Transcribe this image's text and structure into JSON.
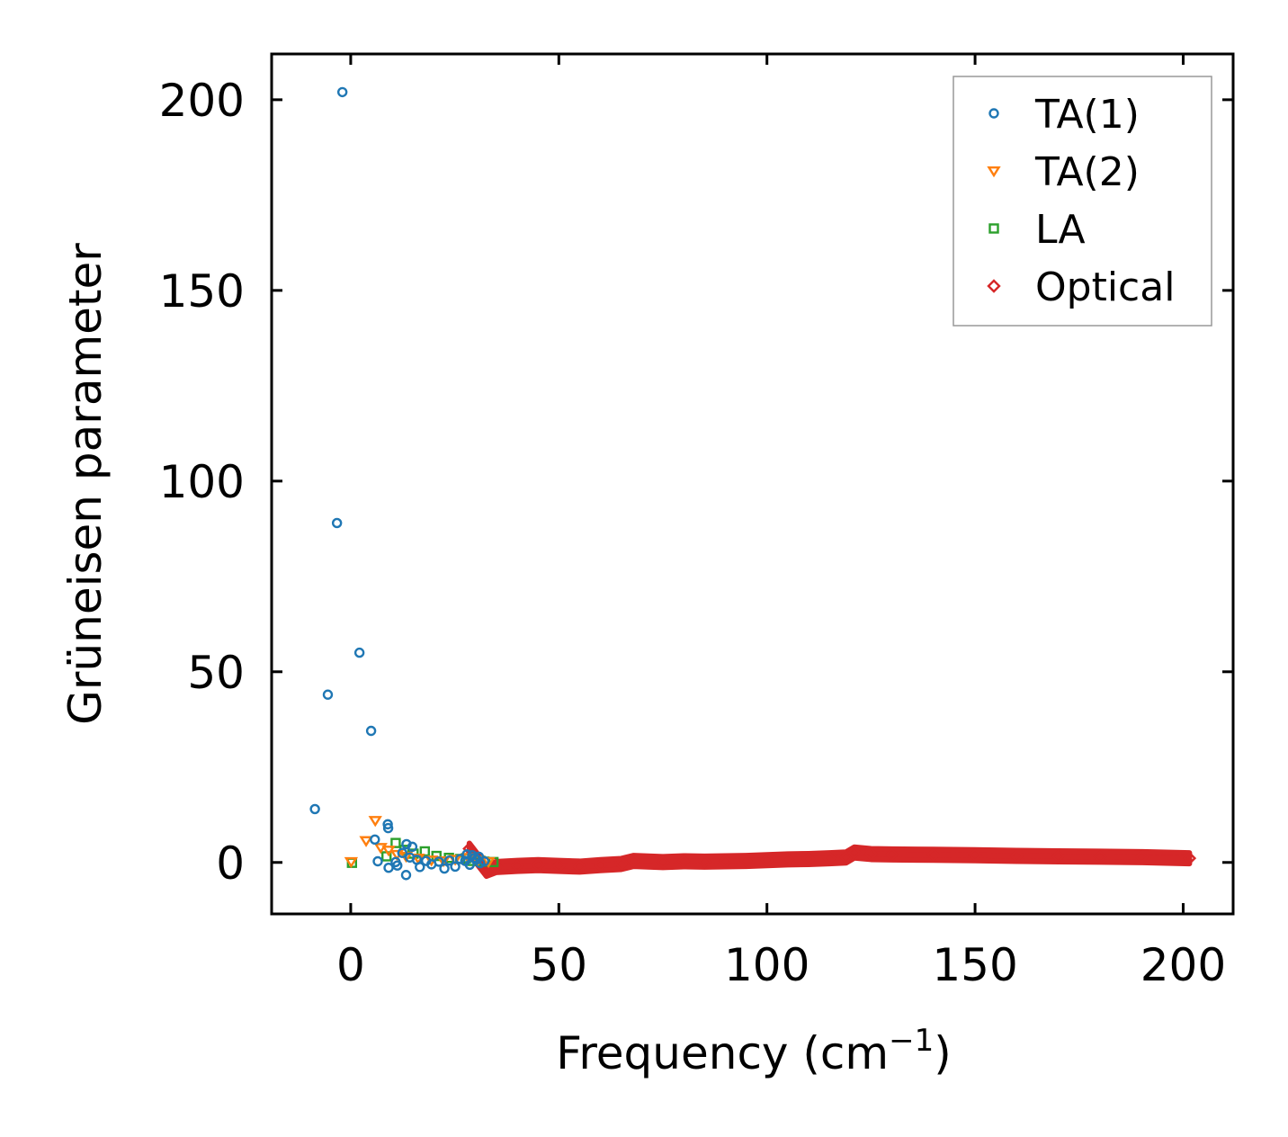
{
  "chart_data": {
    "type": "scatter",
    "title": "",
    "xlabel": "Frequency (cm",
    "xlabel_sup": "−1",
    "xlabel_end": ")",
    "ylabel": "Grüneisen parameter",
    "xlim": [
      -19,
      212
    ],
    "ylim": [
      -13.5,
      212
    ],
    "xticks": [
      0,
      50,
      100,
      150,
      200
    ],
    "yticks": [
      0,
      50,
      100,
      150,
      200
    ],
    "xtick_labels": [
      "0",
      "50",
      "100",
      "150",
      "200"
    ],
    "ytick_labels": [
      "0",
      "50",
      "100",
      "150",
      "200"
    ],
    "grid": false,
    "legend_position": "top-right",
    "series": [
      {
        "name": "TA(1)",
        "marker": "circle",
        "color": "#1f77b4",
        "points": [
          [
            -2,
            202
          ],
          [
            -3.3,
            89
          ],
          [
            2.1,
            55
          ],
          [
            -5.5,
            44
          ],
          [
            4.9,
            34.5
          ],
          [
            -8.6,
            14
          ],
          [
            8.9,
            10
          ],
          [
            9,
            9
          ],
          [
            5.8,
            6
          ],
          [
            13.4,
            4.8
          ],
          [
            14.8,
            4.1
          ],
          [
            6.5,
            0.3
          ],
          [
            9.1,
            -1.4
          ],
          [
            10.8,
            0.1
          ],
          [
            13.3,
            -3.3
          ],
          [
            16.6,
            -1.2
          ],
          [
            19.4,
            -0.5
          ],
          [
            22.5,
            -1.6
          ],
          [
            25.1,
            -1.1
          ],
          [
            27.5,
            0.4
          ],
          [
            29.2,
            1.9
          ],
          [
            30.3,
            0.8
          ],
          [
            31.1,
            -0.2
          ],
          [
            27.9,
            2.1
          ],
          [
            29.8,
            1.2
          ],
          [
            28.6,
            -0.6
          ],
          [
            26.3,
            0.9
          ],
          [
            30.8,
            1.5
          ],
          [
            12.4,
            2.5
          ],
          [
            15.9,
            0.7
          ],
          [
            18.1,
            0.4
          ],
          [
            21.2,
            0.2
          ],
          [
            23.7,
            0.5
          ],
          [
            32.1,
            0.3
          ],
          [
            11.2,
            -0.8
          ],
          [
            14.2,
            1.3
          ]
        ]
      },
      {
        "name": "TA(2)",
        "marker": "triangle-down",
        "color": "#ff7f0e",
        "points": [
          [
            5.9,
            11
          ],
          [
            3.7,
            5.7
          ],
          [
            0.1,
            0.2
          ],
          [
            9.1,
            3.2
          ],
          [
            7.2,
            3.9
          ],
          [
            11.1,
            2.1
          ],
          [
            13.3,
            1.6
          ],
          [
            16.2,
            1.1
          ],
          [
            19.4,
            0.6
          ],
          [
            22.3,
            0.4
          ],
          [
            25.1,
            0.8
          ],
          [
            28.2,
            1.3
          ],
          [
            30.6,
            0.6
          ],
          [
            33.1,
            0.2
          ]
        ]
      },
      {
        "name": "LA",
        "marker": "square",
        "color": "#2ca02c",
        "points": [
          [
            0.3,
            -0.1
          ],
          [
            10.8,
            5.1
          ],
          [
            8.6,
            1.6
          ],
          [
            12.9,
            3.3
          ],
          [
            15.1,
            2.3
          ],
          [
            17.8,
            2.9
          ],
          [
            20.6,
            1.7
          ],
          [
            23.6,
            1.2
          ],
          [
            26.3,
            0.9
          ],
          [
            29.2,
            0.4
          ],
          [
            32.1,
            0.2
          ],
          [
            34.3,
            0.1
          ],
          [
            31.1,
            0.5
          ],
          [
            27.7,
            1.1
          ]
        ]
      },
      {
        "name": "Optical",
        "marker": "diamond",
        "color": "#d62728",
        "points": [
          [
            28.5,
            3.6
          ],
          [
            32.6,
            -2.2
          ],
          [
            35,
            -1.2
          ],
          [
            40,
            -0.9
          ],
          [
            45,
            -0.7
          ],
          [
            50,
            -0.9
          ],
          [
            55,
            -1.1
          ],
          [
            60,
            -0.7
          ],
          [
            65,
            -0.4
          ],
          [
            68,
            0.4
          ],
          [
            75,
            0.1
          ],
          [
            80,
            0.3
          ],
          [
            85,
            0.2
          ],
          [
            90,
            0.3
          ],
          [
            95,
            0.4
          ],
          [
            100,
            0.6
          ],
          [
            105,
            0.8
          ],
          [
            110,
            0.9
          ],
          [
            115,
            1.1
          ],
          [
            119,
            1.3
          ],
          [
            121,
            2.6
          ],
          [
            125,
            2.2
          ],
          [
            130,
            2.1
          ],
          [
            140,
            2
          ],
          [
            150,
            1.9
          ],
          [
            160,
            1.7
          ],
          [
            170,
            1.6
          ],
          [
            180,
            1.5
          ],
          [
            190,
            1.4
          ],
          [
            201.5,
            1.1
          ]
        ]
      }
    ]
  }
}
